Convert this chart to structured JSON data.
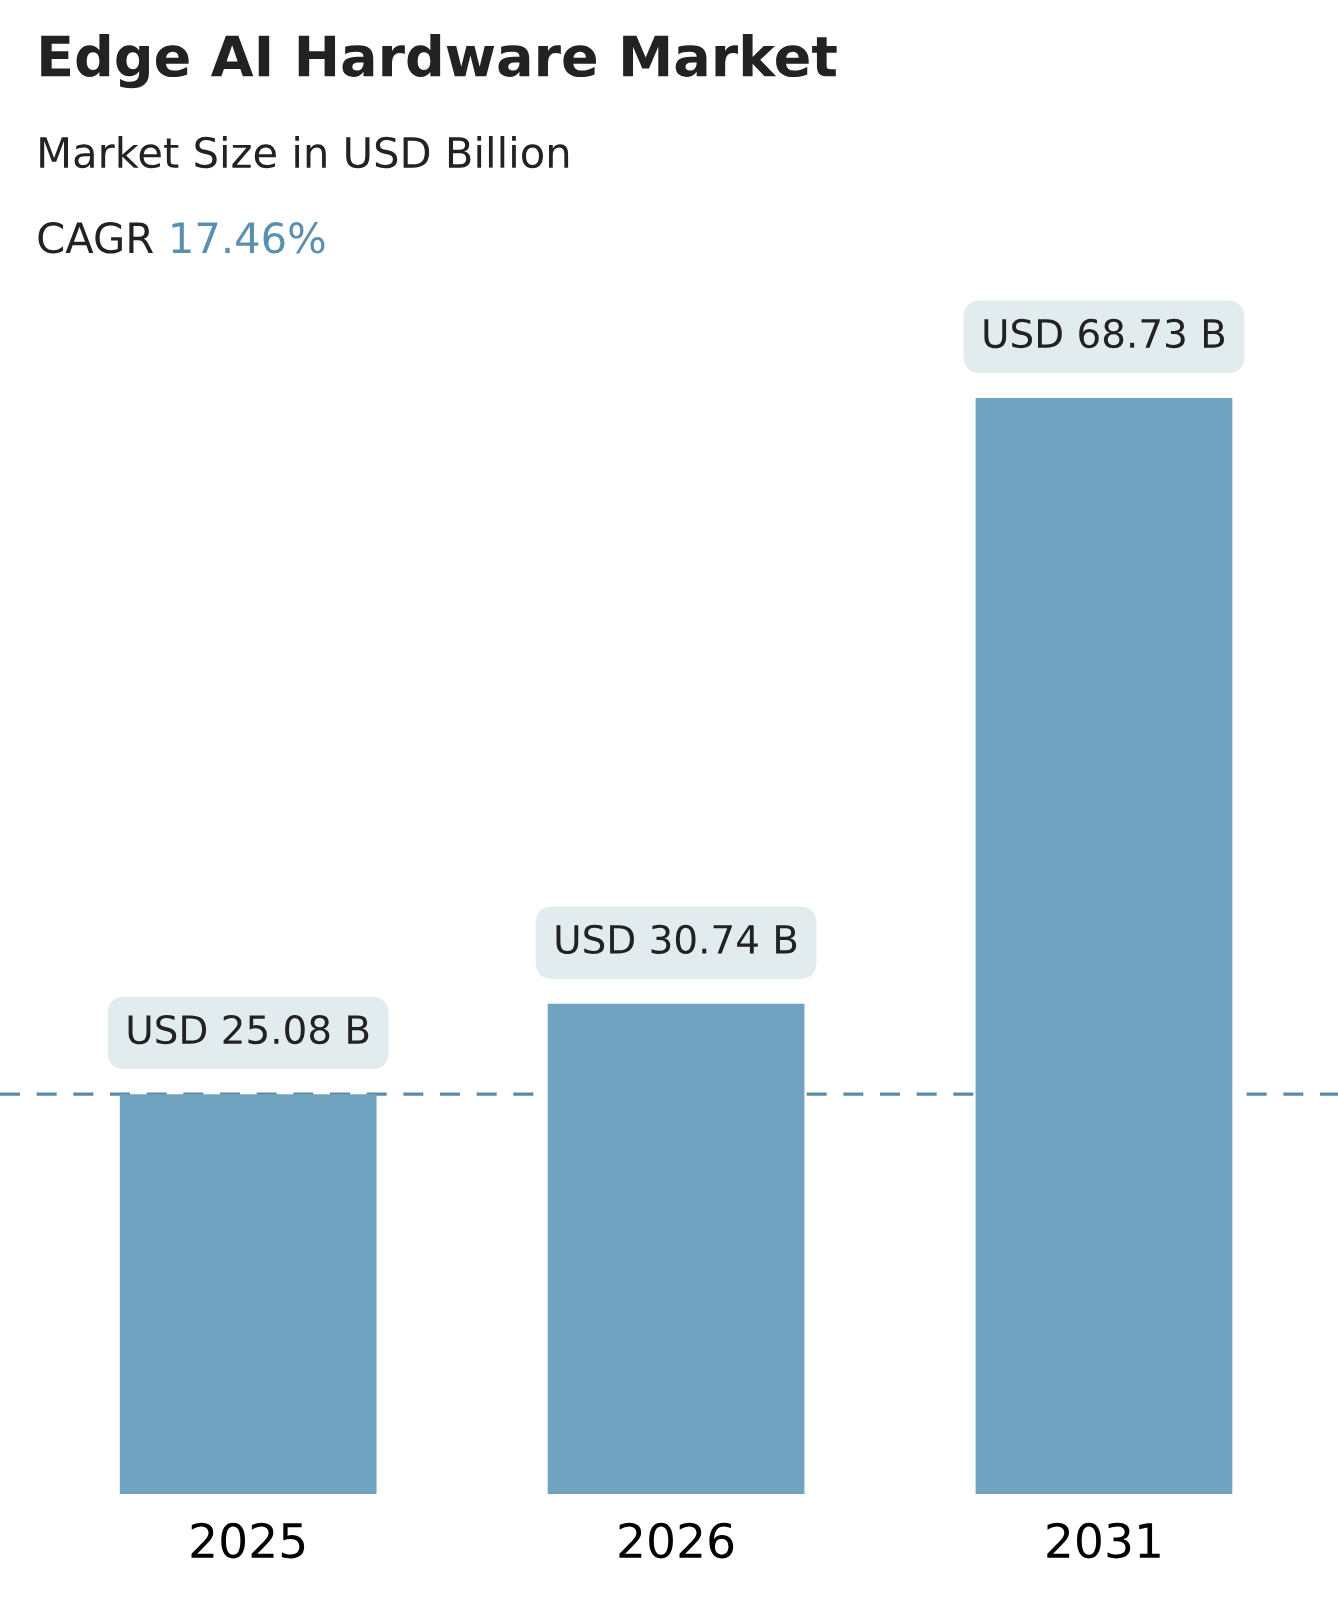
{
  "chart_data": {
    "type": "bar",
    "title": "Edge AI Hardware Market",
    "subtitle": "Market Size in USD Billion",
    "annotations": [
      "CAGR",
      "17.46%"
    ],
    "categories": [
      "2025",
      "2026",
      "2031"
    ],
    "values": [
      25.08,
      30.74,
      68.73
    ],
    "value_labels": [
      "USD 25.08 B",
      "USD 30.74 B",
      "USD 68.73 B"
    ],
    "color": "#6fa3c0",
    "ref_lines": [
      {
        "axis": "y",
        "value": 25.08,
        "color": "#5a8aa8",
        "line_style": "dashed"
      }
    ],
    "grid": false,
    "legend": false
  }
}
